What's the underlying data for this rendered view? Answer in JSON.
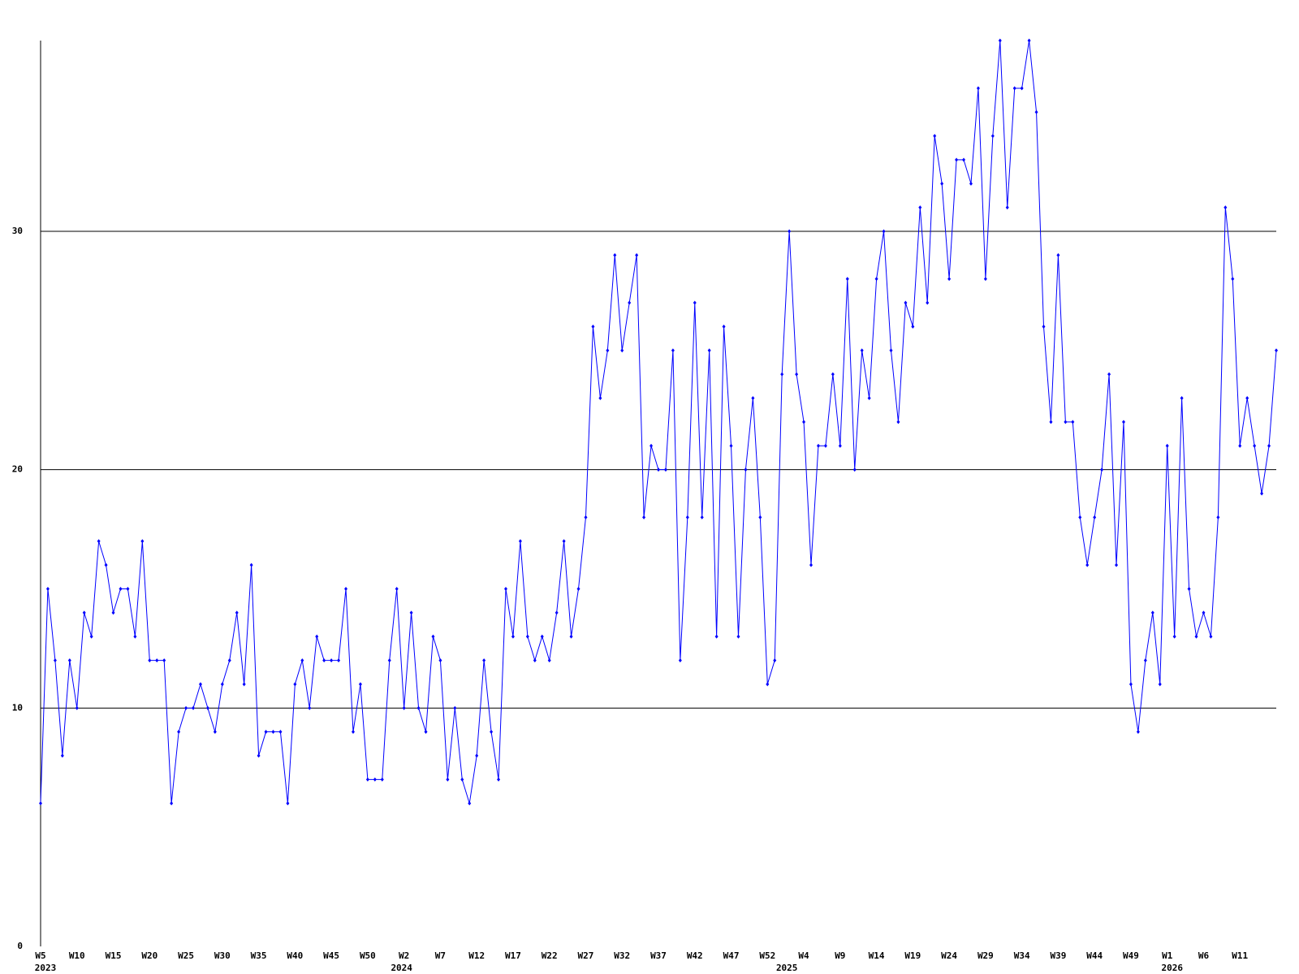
{
  "chart_data": {
    "type": "line",
    "categories": [
      "W5",
      null,
      null,
      null,
      null,
      "W10",
      null,
      null,
      null,
      null,
      "W15",
      null,
      null,
      null,
      null,
      "W20",
      null,
      null,
      null,
      null,
      "W25",
      null,
      null,
      null,
      null,
      "W30",
      null,
      null,
      null,
      null,
      "W35",
      null,
      null,
      null,
      null,
      "W40",
      null,
      null,
      null,
      null,
      "W45",
      null,
      null,
      null,
      null,
      "W50",
      null,
      null,
      null,
      null,
      "W2",
      null,
      null,
      null,
      null,
      "W7",
      null,
      null,
      null,
      null,
      "W12",
      null,
      null,
      null,
      null,
      "W17",
      null,
      null,
      null,
      null,
      "W22",
      null,
      null,
      null,
      null,
      "W27",
      null,
      null,
      null,
      null,
      "W32",
      null,
      null,
      null,
      null,
      "W37",
      null,
      null,
      null,
      null,
      "W42",
      null,
      null,
      null,
      null,
      "W47",
      null,
      null,
      null,
      null,
      "W52",
      null,
      null,
      null,
      null,
      "W4",
      null,
      null,
      null,
      null,
      "W9",
      null,
      null,
      null,
      null,
      "W14",
      null,
      null,
      null,
      null,
      "W19",
      null,
      null,
      null,
      null,
      "W24",
      null,
      null,
      null,
      null,
      "W29",
      null,
      null,
      null,
      null,
      "W34",
      null,
      null,
      null,
      null,
      "W39",
      null,
      null,
      null,
      null,
      "W44",
      null,
      null,
      null,
      null,
      "W49",
      null,
      null,
      null,
      null,
      "W1",
      null,
      null,
      null,
      null,
      "W6",
      null,
      null,
      null,
      null,
      "W11",
      null,
      null,
      null,
      null,
      null
    ],
    "years": [
      "2023",
      null,
      null,
      null,
      null,
      null,
      null,
      null,
      null,
      null,
      null,
      null,
      null,
      null,
      null,
      null,
      null,
      null,
      null,
      null,
      null,
      null,
      null,
      null,
      null,
      null,
      null,
      null,
      null,
      null,
      null,
      null,
      null,
      null,
      null,
      null,
      null,
      null,
      null,
      null,
      null,
      null,
      null,
      null,
      null,
      null,
      null,
      null,
      null,
      "2024",
      null,
      null,
      null,
      null,
      null,
      null,
      null,
      null,
      null,
      null,
      null,
      null,
      null,
      null,
      null,
      null,
      null,
      null,
      null,
      null,
      null,
      null,
      null,
      null,
      null,
      null,
      null,
      null,
      null,
      null,
      null,
      null,
      null,
      null,
      null,
      null,
      null,
      null,
      null,
      null,
      null,
      null,
      null,
      null,
      null,
      null,
      null,
      null,
      null,
      null,
      null,
      null,
      "2025",
      null,
      null,
      null,
      null,
      null,
      null,
      null,
      null,
      null,
      null,
      null,
      null,
      null,
      null,
      null,
      null,
      null,
      null,
      null,
      null,
      null,
      null,
      null,
      null,
      null,
      null,
      null,
      null,
      null,
      null,
      null,
      null,
      null,
      null,
      null,
      null,
      null,
      null,
      null,
      null,
      null,
      null,
      null,
      null,
      null,
      null,
      null,
      null,
      null,
      null,
      null,
      null,
      "2026",
      null,
      null,
      null,
      null,
      null,
      null,
      null,
      null,
      null,
      null,
      null,
      null,
      null,
      null,
      null
    ],
    "values": [
      6,
      15,
      12,
      8,
      12,
      10,
      14,
      13,
      17,
      16,
      14,
      15,
      15,
      13,
      17,
      12,
      12,
      12,
      6,
      9,
      10,
      10,
      11,
      10,
      9,
      11,
      12,
      14,
      11,
      16,
      8,
      9,
      9,
      9,
      6,
      11,
      12,
      10,
      13,
      12,
      12,
      12,
      15,
      9,
      11,
      7,
      7,
      7,
      12,
      15,
      10,
      14,
      10,
      9,
      13,
      12,
      7,
      10,
      7,
      6,
      8,
      12,
      9,
      7,
      15,
      13,
      17,
      13,
      12,
      13,
      12,
      14,
      17,
      13,
      15,
      18,
      26,
      23,
      25,
      29,
      25,
      27,
      29,
      18,
      21,
      20,
      20,
      25,
      12,
      18,
      27,
      18,
      25,
      13,
      26,
      21,
      13,
      20,
      23,
      18,
      11,
      12,
      24,
      30,
      24,
      22,
      16,
      21,
      21,
      24,
      21,
      28,
      20,
      25,
      23,
      28,
      30,
      25,
      22,
      27,
      26,
      31,
      27,
      34,
      32,
      28,
      33,
      33,
      32,
      36,
      28,
      34,
      38,
      31,
      36,
      36,
      38,
      35,
      26,
      22,
      29,
      22,
      22,
      18,
      16,
      18,
      20,
      24,
      16,
      22,
      11,
      9,
      12,
      14,
      11,
      21,
      13,
      23,
      15,
      13,
      14,
      13,
      18,
      31,
      28,
      21,
      23,
      21,
      19,
      21,
      25
    ],
    "color": "#0000ff",
    "ylim": [
      0,
      38
    ],
    "yticks": [
      0,
      10,
      20,
      30
    ],
    "grid": true
  }
}
